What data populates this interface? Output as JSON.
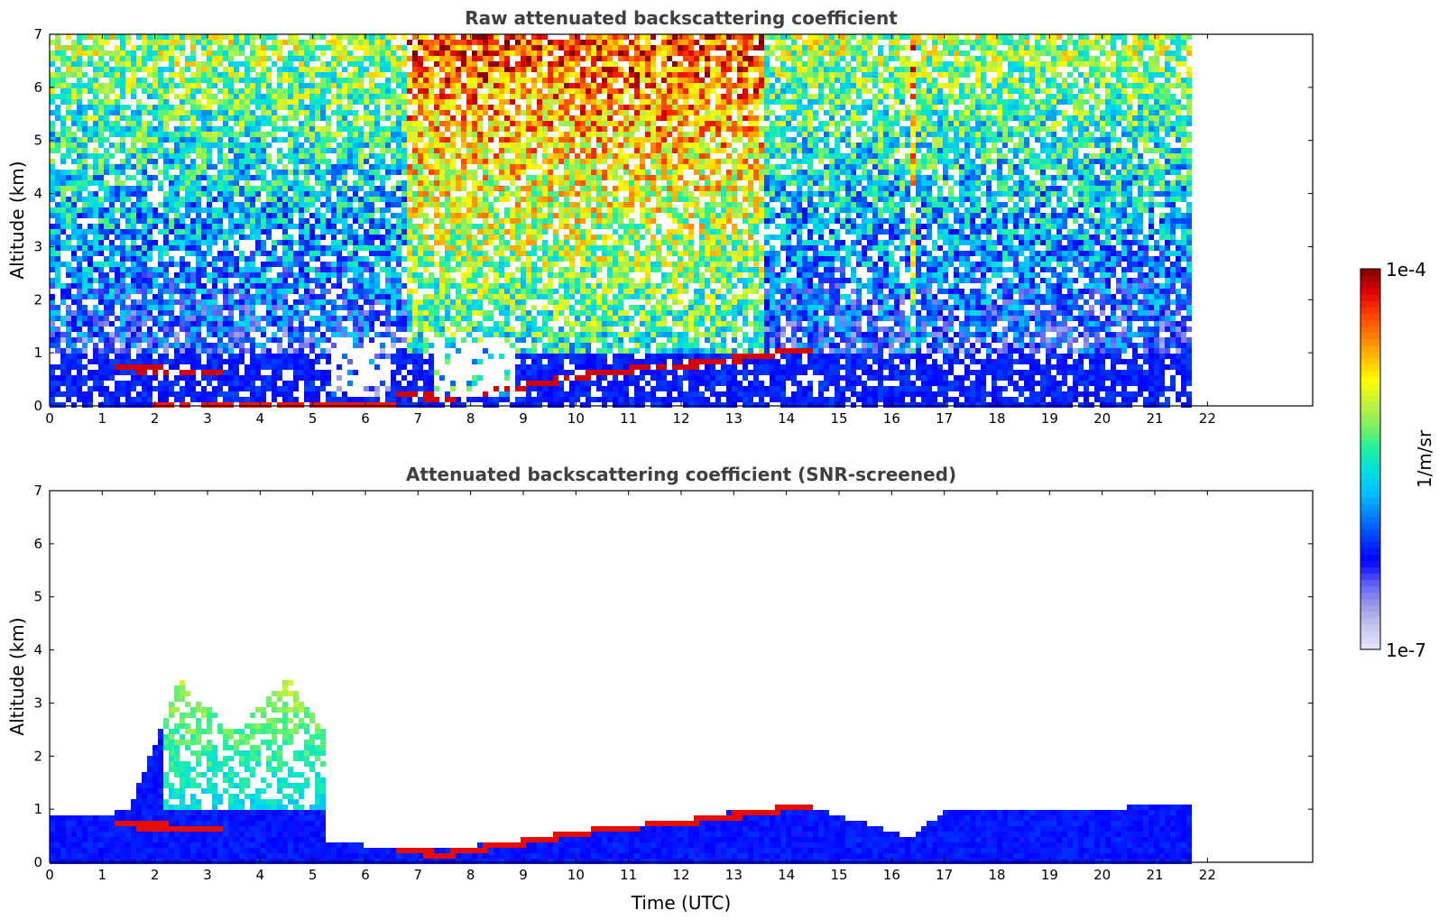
{
  "chart_data": [
    {
      "type": "heatmap",
      "title": "Raw attenuated backscattering coefficient",
      "xlabel": "",
      "ylabel": "Altitude (km)",
      "xlim": [
        0,
        24
      ],
      "ylim": [
        0,
        7
      ],
      "xticks": [
        "0",
        "1",
        "2",
        "3",
        "4",
        "5",
        "6",
        "7",
        "8",
        "9",
        "10",
        "11",
        "12",
        "13",
        "14",
        "15",
        "16",
        "17",
        "18",
        "19",
        "20",
        "21",
        "22"
      ],
      "yticks": [
        "0",
        "1",
        "2",
        "3",
        "4",
        "5",
        "6",
        "7"
      ],
      "data_end_time": 21.7,
      "features": {
        "boundary_layer_top_km": [
          [
            1.3,
            0.7
          ],
          [
            2.3,
            0.67
          ],
          [
            3.2,
            0.62
          ],
          [
            6.8,
            0.2
          ],
          [
            7.5,
            0.15
          ],
          [
            8.5,
            0.3
          ],
          [
            9.5,
            0.45
          ],
          [
            10.5,
            0.62
          ],
          [
            11.5,
            0.72
          ],
          [
            12.5,
            0.8
          ],
          [
            13.5,
            0.95
          ],
          [
            14.3,
            1.05
          ]
        ],
        "surface_layer_km": [
          [
            2.0,
            0.05
          ],
          [
            4.0,
            0.05
          ],
          [
            5.0,
            0.07
          ],
          [
            6.5,
            0.12
          ]
        ],
        "high_signal_column_hours": [
          [
            6.8,
            13.6
          ],
          [
            16.4,
            16.5
          ]
        ],
        "low_signal_gap_hours": [
          [
            5.3,
            6.5
          ],
          [
            7.3,
            8.8
          ]
        ]
      }
    },
    {
      "type": "heatmap",
      "title": "Attenuated backscattering coefficient (SNR-screened)",
      "xlabel": "Time (UTC)",
      "ylabel": "Altitude (km)",
      "xlim": [
        0,
        24
      ],
      "ylim": [
        0,
        7
      ],
      "xticks": [
        "0",
        "1",
        "2",
        "3",
        "4",
        "5",
        "6",
        "7",
        "8",
        "9",
        "10",
        "11",
        "12",
        "13",
        "14",
        "15",
        "16",
        "17",
        "18",
        "19",
        "20",
        "21",
        "22"
      ],
      "yticks": [
        "0",
        "1",
        "2",
        "3",
        "4",
        "5",
        "6",
        "7"
      ],
      "data_end_time": 21.7,
      "features": {
        "screened_top_km": [
          [
            0,
            0.85
          ],
          [
            1.5,
            0.95
          ],
          [
            2.5,
            3.5
          ],
          [
            3.5,
            2.5
          ],
          [
            4.5,
            3.5
          ],
          [
            5.2,
            2.5
          ],
          [
            5.3,
            0.35
          ],
          [
            6.5,
            0.3
          ],
          [
            7.0,
            0.25
          ],
          [
            8.5,
            0.35
          ],
          [
            10,
            0.6
          ],
          [
            12,
            0.8
          ],
          [
            13,
            0.95
          ],
          [
            14.3,
            1.1
          ],
          [
            16.4,
            0.45
          ],
          [
            17,
            1.0
          ],
          [
            21.7,
            1.05
          ]
        ],
        "aerosol_plume_hours": [
          [
            2.2,
            5.9
          ]
        ]
      }
    }
  ],
  "colorbar": {
    "label": "1/m/sr",
    "max_label": "1e-4",
    "min_label": "1e-7",
    "scale": "log",
    "colormap": "jet",
    "colors": [
      "#e6e6fa",
      "#c8c8f0",
      "#9a9ae8",
      "#5a5aff",
      "#0000ff",
      "#0040ff",
      "#0080ff",
      "#00c0ff",
      "#00e0e0",
      "#20f0a0",
      "#80f060",
      "#c0f040",
      "#ffff00",
      "#ffc000",
      "#ff8000",
      "#ff4000",
      "#e00000",
      "#800000"
    ]
  }
}
